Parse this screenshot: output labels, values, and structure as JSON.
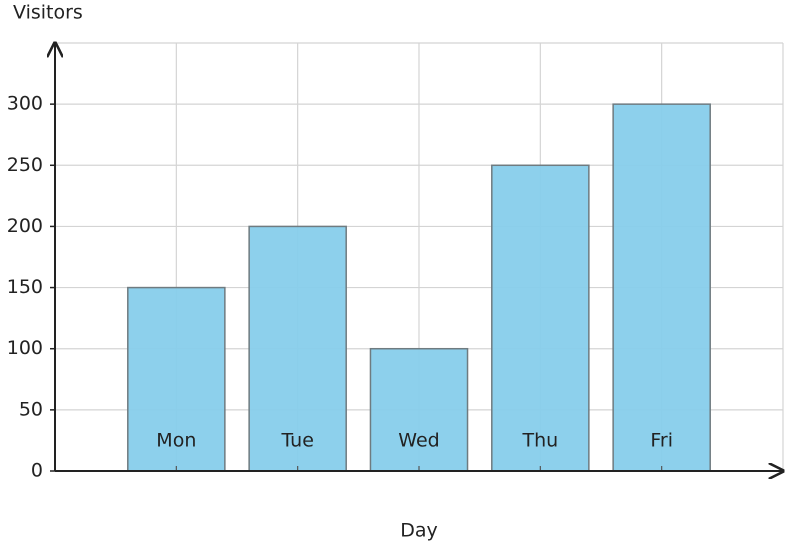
{
  "chart_data": {
    "type": "bar",
    "y_label": "Visitors",
    "x_label": "Day",
    "categories": [
      "Mon",
      "Tue",
      "Wed",
      "Thu",
      "Fri"
    ],
    "values": [
      150,
      200,
      100,
      250,
      300
    ],
    "color": "#87ceeb",
    "ylim": [
      0,
      350
    ],
    "yticks": [
      0,
      50,
      100,
      150,
      200,
      250,
      300
    ],
    "grid": true
  }
}
